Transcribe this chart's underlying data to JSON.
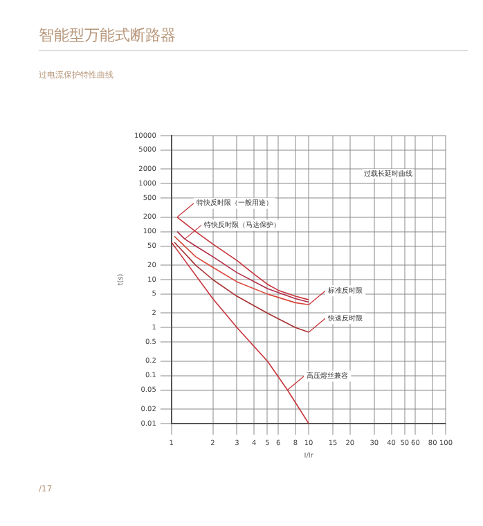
{
  "chart_data": {
    "type": "line",
    "title": "智能型万能式断路器",
    "subtitle": "过电流保护特性曲线",
    "xlabel": "I/Ir",
    "ylabel": "t(s)",
    "log": "xy",
    "series": [
      {
        "color": "#c8333a",
        "x": [
          1.1,
          1.5,
          2,
          3,
          4,
          5,
          6,
          8,
          10
        ],
        "values": [
          200,
          100,
          55,
          25,
          13,
          8,
          6,
          4.5,
          3.8
        ]
      },
      {
        "color": "#b02a45",
        "x": [
          1.1,
          1.25,
          1.5,
          2,
          3,
          5,
          8,
          10
        ],
        "values": [
          100,
          70,
          50,
          30,
          14,
          6.5,
          4,
          3.4
        ]
      },
      {
        "color": "#d9453a",
        "x": [
          1.05,
          1.5,
          2,
          3,
          5,
          8,
          10
        ],
        "values": [
          80,
          30,
          18,
          9,
          5,
          3.3,
          3
        ]
      },
      {
        "color": "#a83030",
        "x": [
          1.05,
          1.5,
          2,
          3,
          5,
          8,
          10
        ],
        "values": [
          60,
          20,
          10,
          4.5,
          2,
          1,
          0.8
        ]
      },
      {
        "color": "#c8333a",
        "x": [
          1,
          2,
          3,
          5,
          7,
          10
        ],
        "values": [
          60,
          4,
          1,
          0.2,
          0.05,
          0.01
        ]
      }
    ],
    "xlim": [
      1,
      100
    ],
    "xticks": [
      1,
      2,
      3,
      4,
      5,
      6,
      8,
      10,
      15,
      20,
      30,
      40,
      50,
      60,
      80,
      100
    ],
    "ylim": [
      0.01,
      10000
    ],
    "yticks": [
      0.01,
      0.02,
      0.05,
      0.1,
      0.2,
      0.5,
      1,
      2,
      5,
      10,
      20,
      50,
      100,
      200,
      500,
      1000,
      2000,
      5000,
      10000
    ],
    "grid": true,
    "legend": false,
    "marker": "none",
    "line_style": "solid",
    "annotations": [
      {
        "text": "特快反时限（一般用途）",
        "x": 1.1,
        "y": 200
      },
      {
        "text": "特快反时限（马达保护）",
        "x": 1.25,
        "y": 70
      },
      {
        "text": "标准反时限",
        "x": 10,
        "y": 3
      },
      {
        "text": "快速反时限",
        "x": 10,
        "y": 0.8
      },
      {
        "text": "高压熔丝兼容",
        "x": 7,
        "y": 0.05
      },
      "过载长延时曲线",
      "/17"
    ]
  }
}
